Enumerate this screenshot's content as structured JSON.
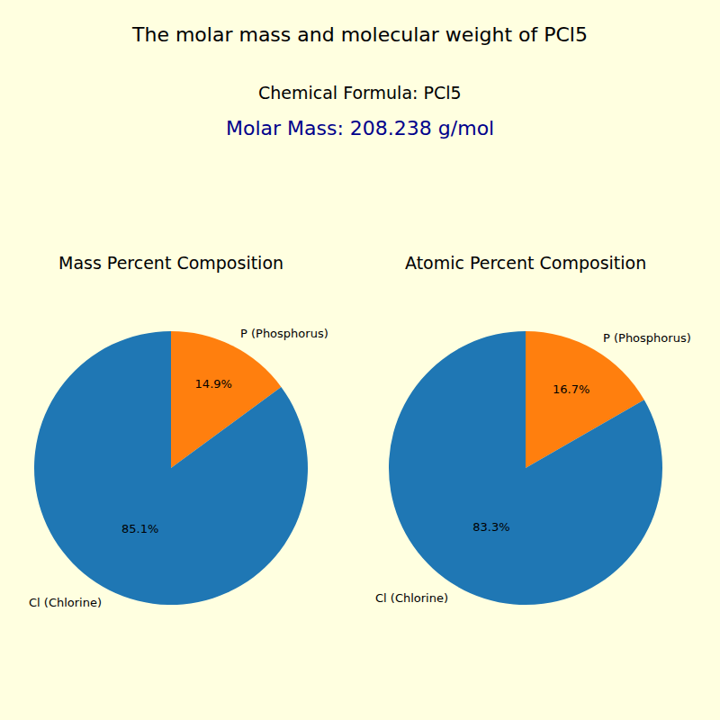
{
  "title": "The molar mass and molecular weight of PCl5",
  "subtitle": "Chemical Formula: PCl5",
  "annotation": "Molar Mass: 208.238 g/mol",
  "chart_data": [
    {
      "type": "pie",
      "title": "Mass Percent Composition",
      "categories": [
        "P (Phosphorus)",
        "Cl (Chlorine)"
      ],
      "values": [
        14.9,
        85.1
      ],
      "value_labels": [
        "14.9%",
        "85.1%"
      ],
      "colors": [
        "#ff7f0e",
        "#1f77b4"
      ],
      "data_labels": true
    },
    {
      "type": "pie",
      "title": "Atomic Percent Composition",
      "categories": [
        "P (Phosphorus)",
        "Cl (Chlorine)"
      ],
      "values": [
        16.7,
        83.3
      ],
      "value_labels": [
        "16.7%",
        "83.3%"
      ],
      "colors": [
        "#ff7f0e",
        "#1f77b4"
      ],
      "data_labels": true
    }
  ]
}
